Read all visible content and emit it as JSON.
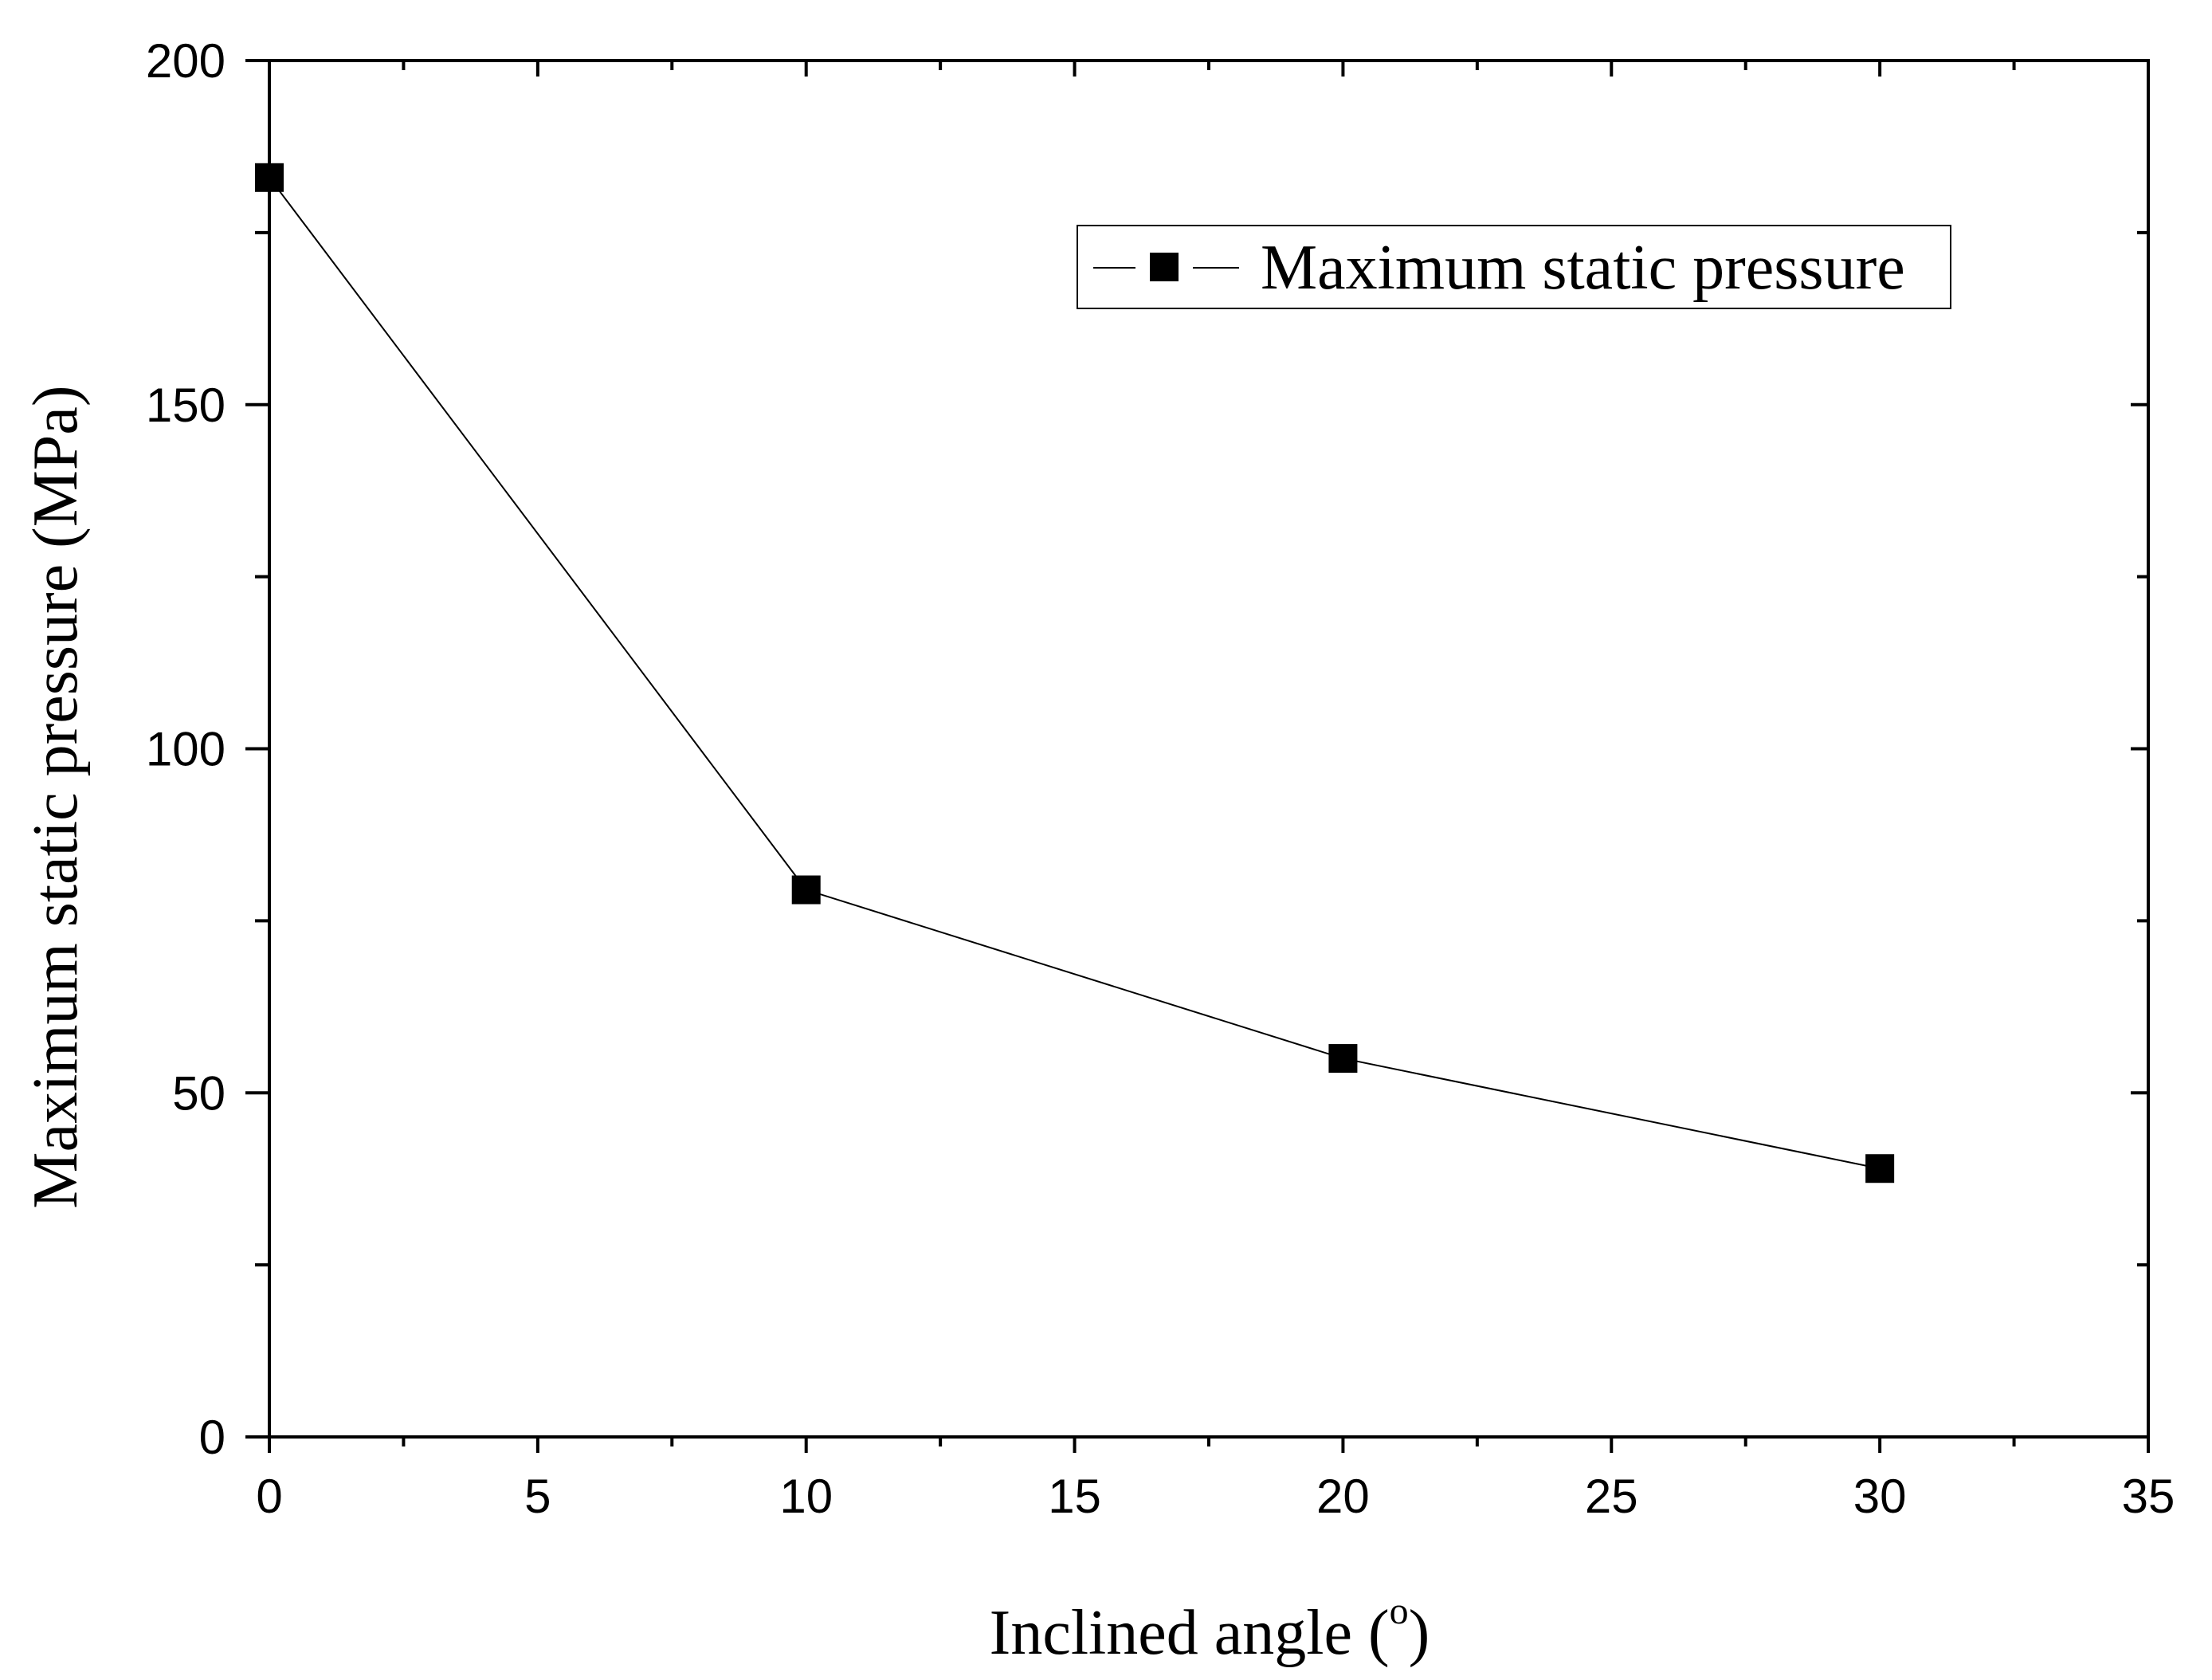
{
  "chart_data": {
    "type": "line",
    "title": "",
    "xlabel": "Inclined angle (",
    "xlabel_degree": "o",
    "xlabel_close": ")",
    "ylabel": "Maximum static pressure (MPa)",
    "xlim": [
      0,
      35
    ],
    "ylim": [
      0,
      200
    ],
    "x_ticks": [
      0,
      5,
      10,
      15,
      20,
      25,
      30,
      35
    ],
    "y_ticks": [
      0,
      50,
      100,
      150,
      200
    ],
    "x_tick_labels": [
      "0",
      "5",
      "10",
      "15",
      "20",
      "25",
      "30",
      "35"
    ],
    "y_tick_labels": [
      "0",
      "50",
      "100",
      "150",
      "200"
    ],
    "grid": false,
    "legend_position": "top-right",
    "series": [
      {
        "name": "Maximum static pressure",
        "marker": "square",
        "color": "#000000",
        "x": [
          0,
          10,
          20,
          30
        ],
        "y": [
          183,
          79.5,
          55,
          39
        ]
      }
    ]
  }
}
